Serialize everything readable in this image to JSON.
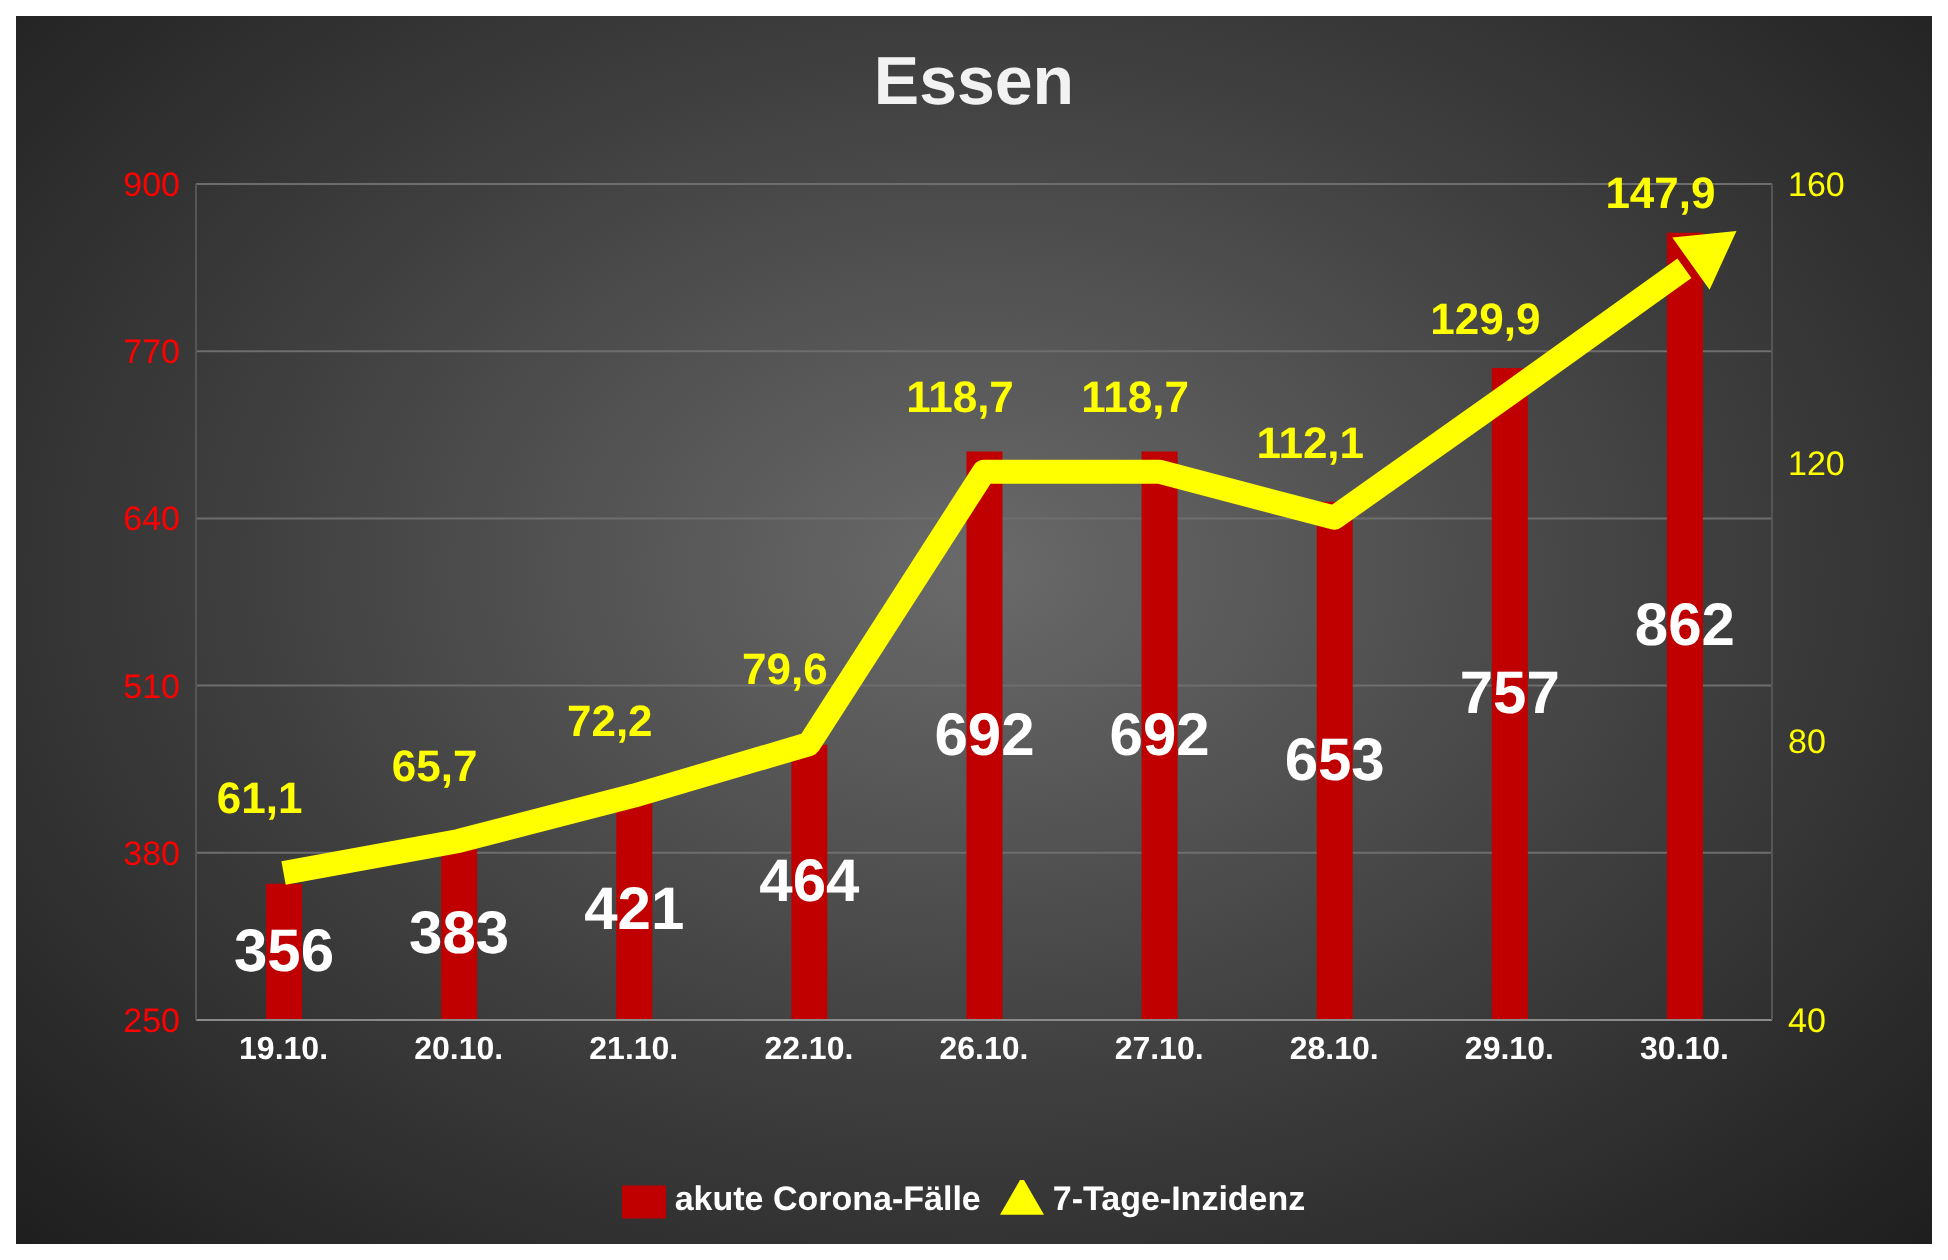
{
  "chart_data": {
    "type": "bar",
    "title": "Essen",
    "categories": [
      "19.10.",
      "20.10.",
      "21.10.",
      "22.10.",
      "26.10.",
      "27.10.",
      "28.10.",
      "29.10.",
      "30.10."
    ],
    "series": [
      {
        "name": "akute Corona-Fälle",
        "color": "#c00000",
        "values": [
          356,
          383,
          421,
          464,
          692,
          692,
          653,
          757,
          862
        ],
        "value_labels": [
          "356",
          "383",
          "421",
          "464",
          "692",
          "692",
          "653",
          "757",
          "862"
        ]
      },
      {
        "name": "7-Tage-Inzidenz",
        "type": "line",
        "axis": "y2",
        "color": "#ffff00",
        "values": [
          61.1,
          65.7,
          72.2,
          79.6,
          118.7,
          118.7,
          112.1,
          129.9,
          147.9
        ],
        "value_labels": [
          "61,1",
          "65,7",
          "72,2",
          "79,6",
          "118,7",
          "118,7",
          "112,1",
          "129,9",
          "147,9"
        ]
      }
    ],
    "ylim": [
      250,
      900
    ],
    "yticks": [
      250,
      380,
      510,
      640,
      770,
      900
    ],
    "y2lim": [
      40,
      160
    ],
    "y2ticks": [
      40,
      80,
      120,
      160
    ],
    "grid": "y",
    "legend": "bottom",
    "marker": "none",
    "line_style": "solid"
  }
}
